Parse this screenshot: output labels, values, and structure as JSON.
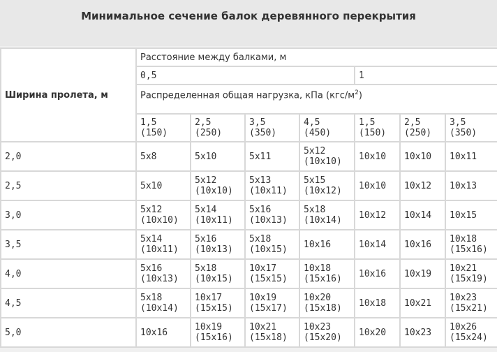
{
  "title": "Минимальное сечение балок деревянного перекрытия",
  "span_header": "Ширина пролета, м",
  "distance_header": "Расстояние между балками, м",
  "distances": [
    "0,5",
    "1"
  ],
  "load_header": "Распределенная общая нагрузка, кПа (кгс/м",
  "load_header_sup": "2",
  "load_header_close": ")",
  "loads": [
    {
      "kpa": "1,5",
      "kgf": "(150)"
    },
    {
      "kpa": "2,5",
      "kgf": "(250)"
    },
    {
      "kpa": "3,5",
      "kgf": "(350)"
    },
    {
      "kpa": "4,5",
      "kgf": "(450)"
    },
    {
      "kpa": "1,5",
      "kgf": "(150)"
    },
    {
      "kpa": "2,5",
      "kgf": "(250)"
    },
    {
      "kpa": "3,5",
      "kgf": "(350)"
    }
  ],
  "rows": [
    {
      "span": "2,0",
      "cells": [
        [
          "5x8"
        ],
        [
          "5x10"
        ],
        [
          "5x11"
        ],
        [
          "5x12",
          "(10x10)"
        ],
        [
          "10x10"
        ],
        [
          "10x10"
        ],
        [
          "10x11"
        ]
      ]
    },
    {
      "span": "2,5",
      "cells": [
        [
          "5x10"
        ],
        [
          "5x12",
          "(10x10)"
        ],
        [
          "5x13",
          "(10x11)"
        ],
        [
          "5x15",
          "(10x12)"
        ],
        [
          "10x10"
        ],
        [
          "10x12"
        ],
        [
          "10x13"
        ]
      ]
    },
    {
      "span": "3,0",
      "cells": [
        [
          "5x12",
          "(10x10)"
        ],
        [
          "5x14",
          "(10x11)"
        ],
        [
          "5x16",
          "(10x13)"
        ],
        [
          "5x18",
          "(10x14)"
        ],
        [
          "10x12"
        ],
        [
          "10x14"
        ],
        [
          "10x15"
        ]
      ]
    },
    {
      "span": "3,5",
      "cells": [
        [
          "5x14",
          "(10x11)"
        ],
        [
          "5x16",
          "(10x13)"
        ],
        [
          "5x18",
          "(10x15)"
        ],
        [
          "10x16"
        ],
        [
          "10x14"
        ],
        [
          "10x16"
        ],
        [
          "10x18",
          "(15x16)"
        ]
      ]
    },
    {
      "span": "4,0",
      "cells": [
        [
          "5x16",
          "(10x13)"
        ],
        [
          "5x18",
          "(10x15)"
        ],
        [
          "10x17",
          "(15x15)"
        ],
        [
          "10x18",
          "(15x16)"
        ],
        [
          "10x16"
        ],
        [
          "10x19"
        ],
        [
          "10x21",
          "(15x19)"
        ]
      ]
    },
    {
      "span": "4,5",
      "cells": [
        [
          "5x18",
          "(10x14)"
        ],
        [
          "10x17",
          "(15x15)"
        ],
        [
          "10x19",
          "(15x17)"
        ],
        [
          "10x20",
          "(15x18)"
        ],
        [
          "10x18"
        ],
        [
          "10x21"
        ],
        [
          "10x23",
          "(15x21)"
        ]
      ]
    },
    {
      "span": "5,0",
      "cells": [
        [
          "10x16"
        ],
        [
          "10x19",
          "(15x16)"
        ],
        [
          "10x21",
          "(15x18)"
        ],
        [
          "10x23",
          "(15x20)"
        ],
        [
          "10x20"
        ],
        [
          "10x23"
        ],
        [
          "10x26",
          "(15x24)"
        ]
      ]
    }
  ]
}
